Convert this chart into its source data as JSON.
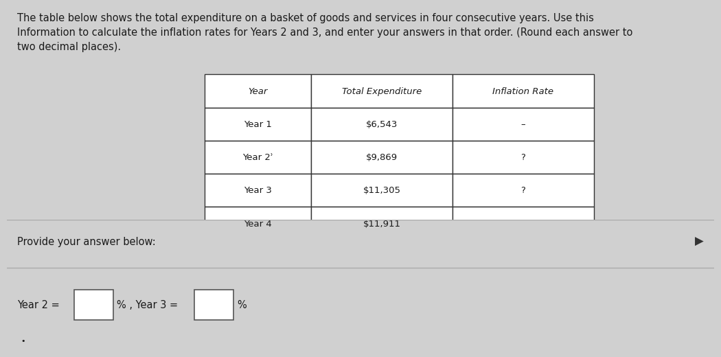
{
  "background_color": "#d0d0d0",
  "top_section_color": "#e8e8e8",
  "bottom_section_color": "#e0e0e0",
  "header_text": "The table below shows the total expenditure on a basket of goods and services in four consecutive years. Use this\nInformation to calculate the inflation rates for Years 2 and 3, and enter your answers in that order. (Round each answer to\ntwo decimal places).",
  "table_headers": [
    "Year",
    "Total Expenditure",
    "Inflation Rate"
  ],
  "table_rows": [
    [
      "Year 1",
      "$6,543",
      "–"
    ],
    [
      "Year 2ʾ",
      "$9,869",
      "?"
    ],
    [
      "Year 3",
      "$11,305",
      "?"
    ],
    [
      "Year 4",
      "$11,911",
      ""
    ]
  ],
  "provide_text": "Provide your answer below:",
  "answer_text": "Year 2 =",
  "answer_text2": "% , Year 3 =",
  "answer_text3": "%",
  "table_header_bg": "#ffffff",
  "table_row_bg": "#ffffff",
  "table_border_color": "#333333",
  "text_color": "#1a1a1a",
  "divider_color": "#aaaaaa",
  "input_box_color": "#e8e8e8",
  "input_box_border": "#555555"
}
